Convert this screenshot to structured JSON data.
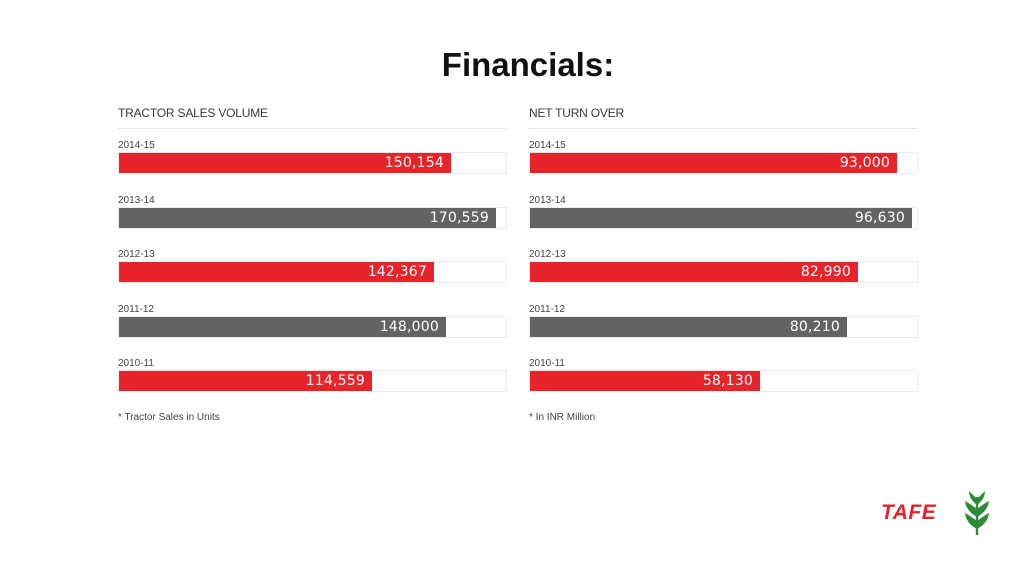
{
  "page": {
    "title": "Financials:"
  },
  "logo": {
    "text": "TAFE"
  },
  "colors": {
    "red": "#e8242b",
    "gray": "#636363"
  },
  "chart_data": [
    {
      "type": "bar",
      "orientation": "horizontal",
      "title": "TRACTOR SALES VOLUME",
      "categories": [
        "2014-15",
        "2013-14",
        "2012-13",
        "2011-12",
        "2010-11"
      ],
      "values": [
        150154,
        170559,
        142367,
        148000,
        114559
      ],
      "value_labels": [
        "150,154",
        "170,559",
        "142,367",
        "148,000",
        "114,559"
      ],
      "bar_colors": [
        "red",
        "gray",
        "red",
        "gray",
        "red"
      ],
      "xlim": [
        0,
        175000
      ],
      "footnote": "* Tractor Sales in Units"
    },
    {
      "type": "bar",
      "orientation": "horizontal",
      "title": "NET TURN OVER",
      "categories": [
        "2014-15",
        "2013-14",
        "2012-13",
        "2011-12",
        "2010-11"
      ],
      "values": [
        93000,
        96630,
        82990,
        80210,
        58130
      ],
      "value_labels": [
        "93,000",
        "96,630",
        "82,990",
        "80,210",
        "58,130"
      ],
      "bar_colors": [
        "red",
        "gray",
        "red",
        "gray",
        "red"
      ],
      "xlim": [
        0,
        98000
      ],
      "footnote": "* In INR Million"
    }
  ]
}
